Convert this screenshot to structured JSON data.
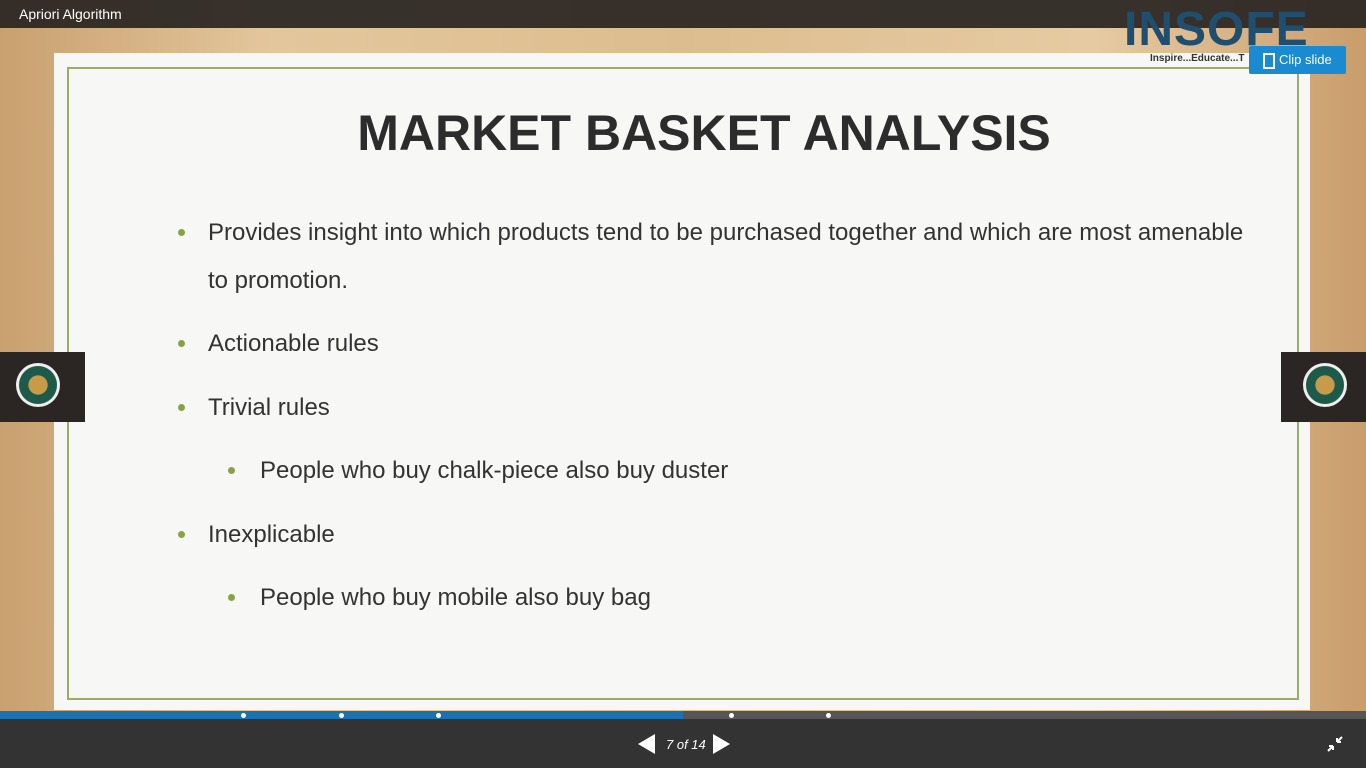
{
  "header": {
    "title": "Apriori Algorithm",
    "clip_button": "Clip slide"
  },
  "logo": {
    "name": "INSOFE",
    "tagline": "Inspire...Educate...T"
  },
  "slide": {
    "title": "MARKET BASKET ANALYSIS",
    "bullets": [
      {
        "text": "Provides insight into which products tend to be purchased together and which are most amenable to promotion.",
        "level": 1
      },
      {
        "text": "Actionable rules",
        "level": 1
      },
      {
        "text": "Trivial rules",
        "level": 1
      },
      {
        "text": "People who buy chalk-piece also buy duster",
        "level": 2
      },
      {
        "text": "Inexplicable",
        "level": 1
      },
      {
        "text": "People who buy mobile also buy bag",
        "level": 2
      }
    ]
  },
  "footer": {
    "counter": "7 of 14"
  }
}
